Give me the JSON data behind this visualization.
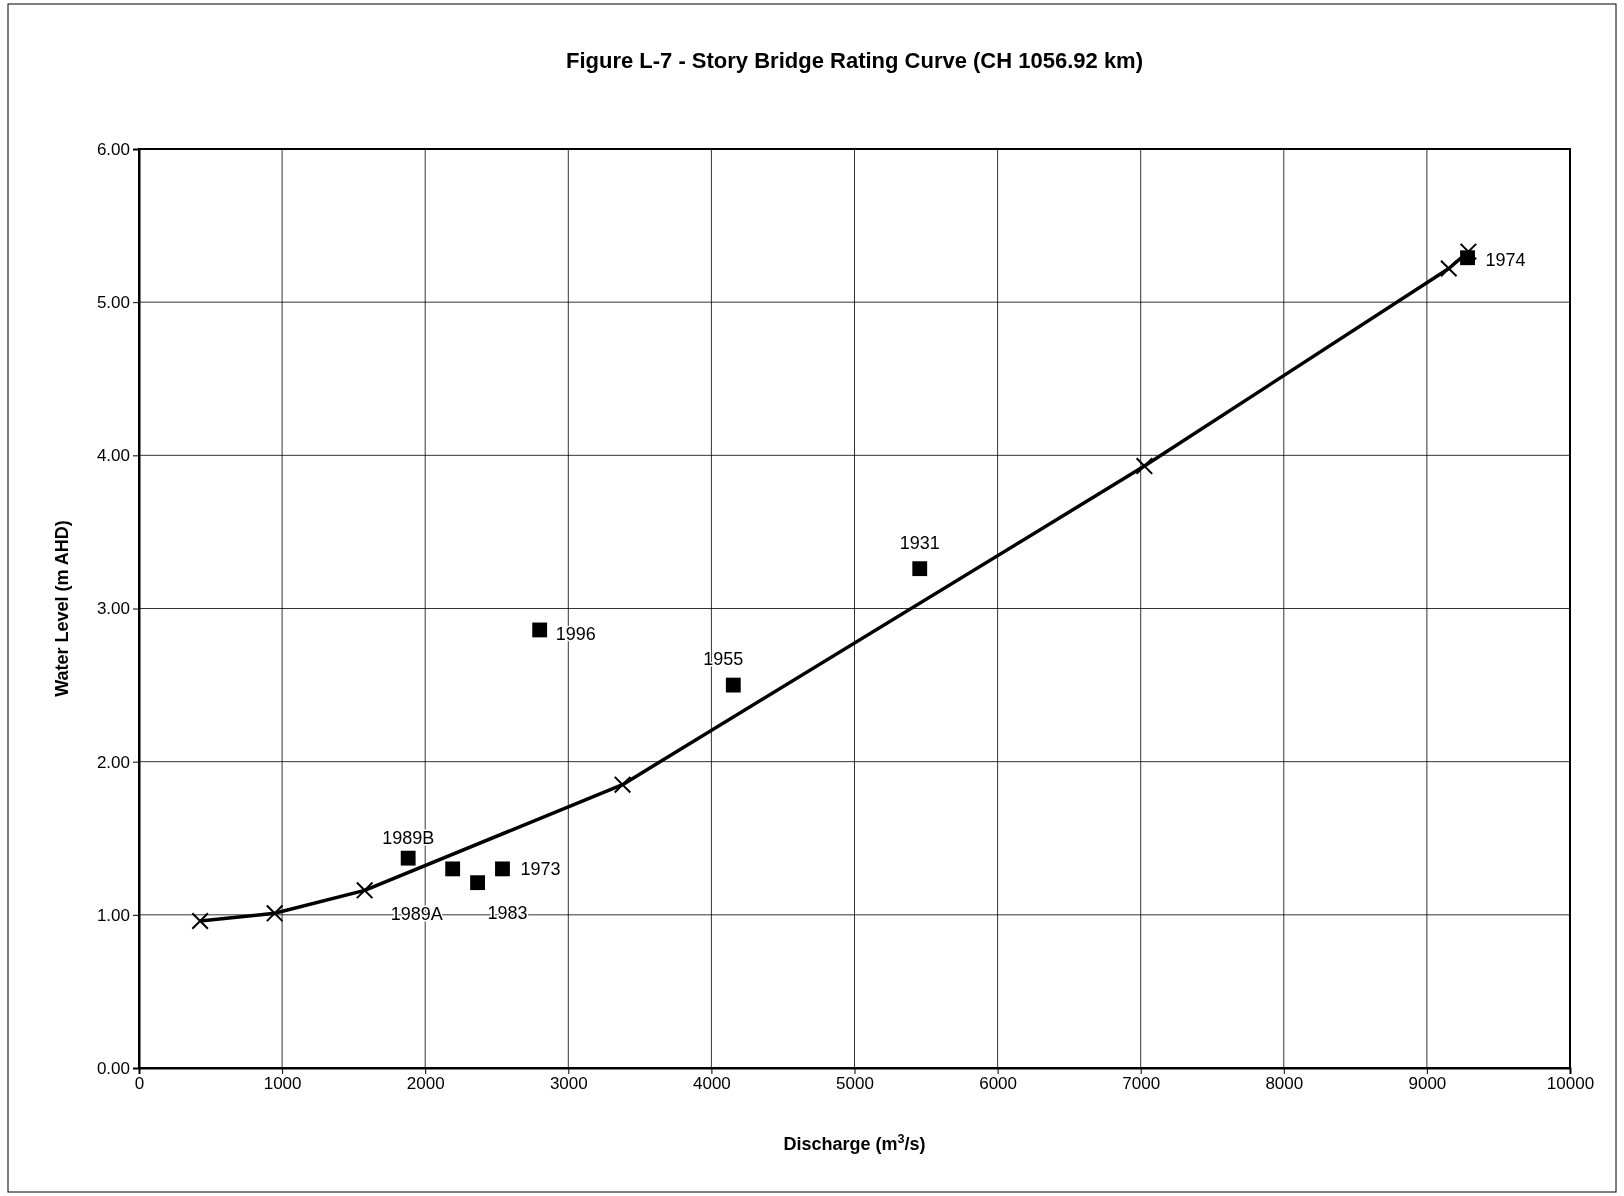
{
  "chart_data": {
    "type": "line",
    "title": "Figure L-7 - Story Bridge Rating Curve (CH 1056.92 km)",
    "xlabel": "Discharge (m$^{3}$/s)",
    "ylabel": "Water Level (m AHD)",
    "xlim": [
      0,
      10000
    ],
    "xticks": [
      0,
      1000,
      2000,
      3000,
      4000,
      5000,
      6000,
      7000,
      8000,
      9000,
      10000
    ],
    "ylim": [
      0,
      6
    ],
    "yticks": [
      {
        "value": 0,
        "label": "0.00"
      },
      {
        "value": 1,
        "label": "1.00"
      },
      {
        "value": 2,
        "label": "2.00"
      },
      {
        "value": 3,
        "label": "3.00"
      },
      {
        "value": 4,
        "label": "4.00"
      },
      {
        "value": 5,
        "label": "5.00"
      },
      {
        "value": 6,
        "label": "6.00"
      }
    ],
    "grid": true,
    "series": [
      {
        "color": "#000000",
        "marker": "cross",
        "x": [
          427,
          948,
          1577,
          3379,
          7026,
          9153,
          9290
        ],
        "values": [
          0.96,
          1.01,
          1.16,
          1.85,
          3.93,
          5.22,
          5.33
        ]
      },
      {
        "type": "scatter",
        "color": "#000000",
        "marker": "square",
        "x": [
          1881,
          2192,
          2366,
          2540,
          2800,
          4153,
          5456,
          9284
        ],
        "values": [
          1.37,
          1.3,
          1.21,
          1.3,
          2.86,
          2.5,
          3.26,
          5.29
        ]
      }
    ],
    "annotations": [
      {
        "text": "1989B",
        "x": 1881,
        "y": 1.37
      },
      {
        "text": "1989A",
        "x": 2192,
        "y": 1.3
      },
      {
        "text": "1983",
        "x": 2366,
        "y": 1.21
      },
      {
        "text": "1973",
        "x": 2540,
        "y": 1.3
      },
      {
        "text": "1996",
        "x": 2800,
        "y": 2.86
      },
      {
        "text": "1955",
        "x": 4153,
        "y": 2.5
      },
      {
        "text": "1931",
        "x": 5456,
        "y": 3.26
      },
      {
        "text": "1974",
        "x": 9284,
        "y": 5.29
      }
    ]
  }
}
